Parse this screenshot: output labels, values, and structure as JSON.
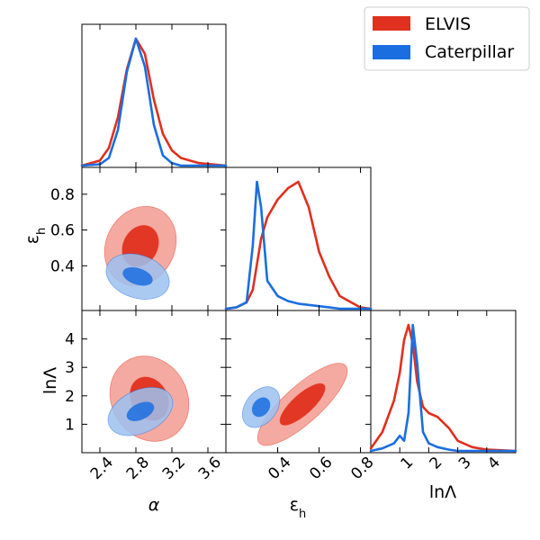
{
  "chart_data": {
    "type": "corner",
    "parameters": [
      "α",
      "ε",
      "lnΛ"
    ],
    "parameter_subscripts": [
      "",
      "h",
      ""
    ],
    "legend": {
      "placement": "top-right",
      "entries": [
        "ELVIS",
        "Caterpillar"
      ]
    },
    "series": [
      {
        "name": "ELVIS",
        "color": "#e0301e",
        "fill_inner": "#e0301e",
        "fill_outer": "#f4a59c"
      },
      {
        "name": "Caterpillar",
        "color": "#1b6ee0",
        "fill_inner": "#1b6ee0",
        "fill_outer": "#9cc1f0"
      }
    ],
    "axes": {
      "alpha": {
        "range": [
          2.2,
          3.8
        ],
        "ticks": [
          2.4,
          2.8,
          3.2,
          3.6
        ],
        "tick_labels": [
          "2.4",
          "2.8",
          "3.2",
          "3.6"
        ],
        "label": "α"
      },
      "eps_x": {
        "range": [
          0.15,
          0.85
        ],
        "ticks": [
          0.4,
          0.6,
          0.8
        ],
        "tick_labels": [
          "0.4",
          "0.6",
          "0.8"
        ],
        "label": "ε"
      },
      "eps_y": {
        "range": [
          0.15,
          0.95
        ],
        "ticks": [
          0.4,
          0.6,
          0.8
        ],
        "tick_labels": [
          "0.4",
          "0.6",
          "0.8"
        ],
        "label": "ε"
      },
      "lnL_y": {
        "range": [
          0.0,
          5.0
        ],
        "ticks": [
          1,
          2,
          3,
          4
        ],
        "tick_labels": [
          "1",
          "2",
          "3",
          "4"
        ],
        "label": "lnΛ"
      },
      "lnL_x": {
        "range": [
          0.0,
          5.0
        ],
        "ticks": [
          1,
          2,
          3,
          4
        ],
        "tick_labels": [
          "1",
          "2",
          "3",
          "4"
        ],
        "label": "lnΛ"
      }
    },
    "marginals": {
      "alpha": {
        "x": [
          2.2,
          2.4,
          2.5,
          2.6,
          2.7,
          2.8,
          2.9,
          3.0,
          3.1,
          3.2,
          3.3,
          3.5,
          3.8
        ],
        "ELVIS": [
          0.0,
          0.04,
          0.14,
          0.38,
          0.76,
          1.0,
          0.88,
          0.52,
          0.25,
          0.12,
          0.06,
          0.02,
          0.0
        ],
        "Caterpillar": [
          0.0,
          0.01,
          0.06,
          0.28,
          0.74,
          1.0,
          0.78,
          0.32,
          0.08,
          0.02,
          0.0,
          0.0,
          0.0
        ]
      },
      "eps": {
        "x": [
          0.15,
          0.2,
          0.25,
          0.28,
          0.3,
          0.32,
          0.35,
          0.4,
          0.45,
          0.5,
          0.55,
          0.6,
          0.65,
          0.7,
          0.8,
          0.85
        ],
        "ELVIS": [
          0.0,
          0.01,
          0.05,
          0.15,
          0.35,
          0.55,
          0.72,
          0.86,
          0.95,
          1.0,
          0.8,
          0.45,
          0.25,
          0.1,
          0.01,
          0.0
        ],
        "Caterpillar": [
          0.0,
          0.01,
          0.05,
          0.5,
          1.0,
          0.8,
          0.22,
          0.1,
          0.06,
          0.04,
          0.03,
          0.02,
          0.01,
          0.0,
          0.0,
          0.0
        ]
      },
      "lnL": {
        "x": [
          0.0,
          0.4,
          0.8,
          1.0,
          1.15,
          1.3,
          1.45,
          1.6,
          1.8,
          2.0,
          2.3,
          2.7,
          3.0,
          3.5,
          4.0,
          5.0
        ],
        "ELVIS": [
          0.02,
          0.15,
          0.4,
          0.62,
          0.88,
          1.0,
          0.85,
          0.55,
          0.35,
          0.3,
          0.27,
          0.18,
          0.08,
          0.03,
          0.01,
          0.0
        ],
        "Caterpillar": [
          0.0,
          0.02,
          0.06,
          0.12,
          0.08,
          0.3,
          1.0,
          0.7,
          0.15,
          0.06,
          0.03,
          0.01,
          0.0,
          0.0,
          0.0,
          0.0
        ]
      }
    },
    "joint": {
      "alpha_eps": {
        "ELVIS": {
          "center": [
            2.85,
            0.51
          ],
          "inner_half_widths": [
            0.19,
            0.12
          ],
          "outer_half_widths": [
            0.38,
            0.23
          ],
          "tilt_deg": 28
        },
        "Caterpillar": {
          "center": [
            2.82,
            0.34
          ],
          "inner_half_widths": [
            0.17,
            0.045
          ],
          "outer_half_widths": [
            0.36,
            0.12
          ],
          "tilt_deg": 18
        }
      },
      "alpha_lnL": {
        "ELVIS": {
          "center": [
            2.95,
            1.9
          ],
          "inner_half_widths": [
            0.2,
            0.8
          ],
          "outer_half_widths": [
            0.42,
            1.55
          ],
          "tilt_deg": -30
        },
        "Caterpillar": {
          "center": [
            2.85,
            1.45
          ],
          "inner_half_widths": [
            0.16,
            0.28
          ],
          "outer_half_widths": [
            0.38,
            0.75
          ],
          "tilt_deg": -25
        }
      },
      "eps_lnL": {
        "ELVIS": {
          "center": [
            0.52,
            1.7
          ],
          "inner_half_widths": [
            0.14,
            0.35
          ],
          "outer_half_widths": [
            0.28,
            0.65
          ],
          "tilt_deg": -42
        },
        "Caterpillar": {
          "center": [
            0.32,
            1.6
          ],
          "inner_half_widths": [
            0.05,
            0.28
          ],
          "outer_half_widths": [
            0.11,
            0.55
          ],
          "tilt_deg": -52
        }
      }
    }
  }
}
